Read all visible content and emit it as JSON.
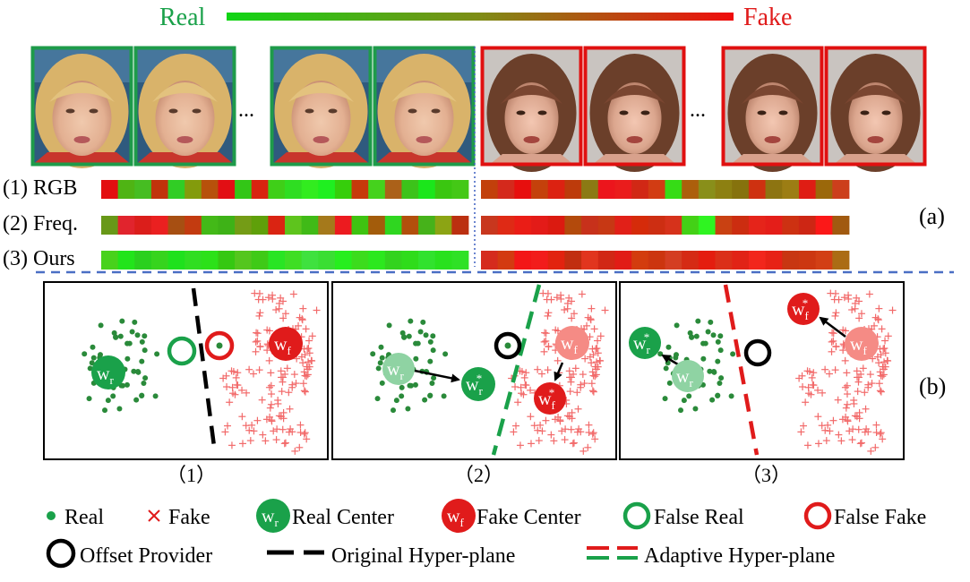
{
  "header": {
    "real_label": "Real",
    "fake_label": "Fake",
    "real_color": "#1aa14a",
    "fake_color": "#e01b1b",
    "ellipsis": "..."
  },
  "rows": [
    {
      "label": "(1) RGB",
      "real": [
        "#e30e10",
        "#4fb414",
        "#46bd22",
        "#c1330b",
        "#31cd25",
        "#839b0c",
        "#b7510b",
        "#e20f14",
        "#33c617",
        "#d82310",
        "#3fcf18",
        "#2fdd22",
        "#32ec1f",
        "#1fef20",
        "#36ce0b",
        "#c6390b",
        "#45d21d",
        "#ab6119",
        "#3cc31a",
        "#1be61b",
        "#3ac610",
        "#44c816"
      ],
      "fake": [
        "#c2400b",
        "#d4291c",
        "#e70f0e",
        "#c4410b",
        "#dc2211",
        "#bd3b0b",
        "#8b7a14",
        "#ec151c",
        "#ea1c1c",
        "#d12815",
        "#d23c13",
        "#36dc16",
        "#ac5f0c",
        "#898f1a",
        "#8d8011",
        "#86720d",
        "#ce3110",
        "#8d7411",
        "#9c7d14",
        "#df1d14",
        "#9b680a",
        "#cc3f1c"
      ]
    },
    {
      "label": "(2) Freq.",
      "real": [
        "#689818",
        "#e1242d",
        "#db1e1b",
        "#ea2020",
        "#a74f12",
        "#c33b10",
        "#43b918",
        "#3eb217",
        "#749c16",
        "#5fa00a",
        "#da2412",
        "#5ec41d",
        "#40ba17",
        "#a5791b",
        "#ec1b1f",
        "#3ec311",
        "#a35c0b",
        "#2fd620",
        "#b24f0c",
        "#46b21a",
        "#8ca414",
        "#bb3010"
      ],
      "fake": [
        "#c8371e",
        "#df2a15",
        "#ea1d16",
        "#e31b18",
        "#db1a10",
        "#b34a0c",
        "#c7311b",
        "#c73814",
        "#e12018",
        "#d52b0a",
        "#cd2e12",
        "#d6321b",
        "#43d116",
        "#2ff421",
        "#c94112",
        "#cc2d10",
        "#e5241a",
        "#e41e19",
        "#cd3112",
        "#cd2614",
        "#fb1818",
        "#a15a10"
      ]
    },
    {
      "label": "(3) Ours",
      "real": [
        "#48d21c",
        "#22e41b",
        "#2ad01e",
        "#36d41d",
        "#1fe11d",
        "#30de21",
        "#2ce119",
        "#35c812",
        "#54c61e",
        "#3fca17",
        "#29e524",
        "#3fde24",
        "#3fe13f",
        "#3ade33",
        "#27ee1e",
        "#3cdc1d",
        "#2ce81e",
        "#33d31e",
        "#2fdc1b",
        "#31e22e",
        "#29e11e",
        "#2fe126"
      ],
      "fake": [
        "#d52b1d",
        "#d33a10",
        "#f31617",
        "#f21c1b",
        "#e2230f",
        "#c12e10",
        "#e1351e",
        "#d12715",
        "#e11c16",
        "#d33c0e",
        "#cc350f",
        "#d43e22",
        "#d52b14",
        "#e41d0f",
        "#db2f19",
        "#e12316",
        "#f2261c",
        "#e72216",
        "#c83612",
        "#cc3711",
        "#d23f15",
        "#ab6c14"
      ]
    }
  ],
  "panel_a_label": "(a)",
  "panel_b_label": "(b)",
  "subpanels": [
    {
      "label": "（1）",
      "real_center": "w",
      "real_center_sub": "r",
      "fake_center": "w",
      "fake_center_sub": "f"
    },
    {
      "label": "（2）",
      "old_real_center": "w",
      "old_real_center_sub": "r",
      "new_real_center": "w",
      "new_real_center_sub": "r",
      "new_real_center_sup": "*",
      "old_fake_center": "w",
      "old_fake_center_sub": "f",
      "new_fake_center": "w",
      "new_fake_center_sub": "f",
      "new_fake_center_sup": "*"
    },
    {
      "label": "（3）",
      "new_real_center": "w",
      "new_real_center_sub": "r",
      "new_real_center_sup": "*",
      "old_real_center": "w",
      "old_real_center_sub": "r",
      "new_fake_center": "w",
      "new_fake_center_sub": "f",
      "new_fake_center_sup": "*",
      "old_fake_center": "w",
      "old_fake_center_sub": "f"
    }
  ],
  "legend": {
    "real": "Real",
    "fake": "Fake",
    "real_center": "Real Center",
    "real_center_symbol": "w",
    "real_center_symbol_sub": "r",
    "fake_center": "Fake Center",
    "fake_center_symbol": "w",
    "fake_center_symbol_sub": "f",
    "false_real": "False Real",
    "false_fake": "False Fake",
    "offset_provider": "Offset Provider",
    "original_hyperplane": "Original Hyper-plane",
    "adaptive_hyperplane": "Adaptive Hyper-plane"
  }
}
